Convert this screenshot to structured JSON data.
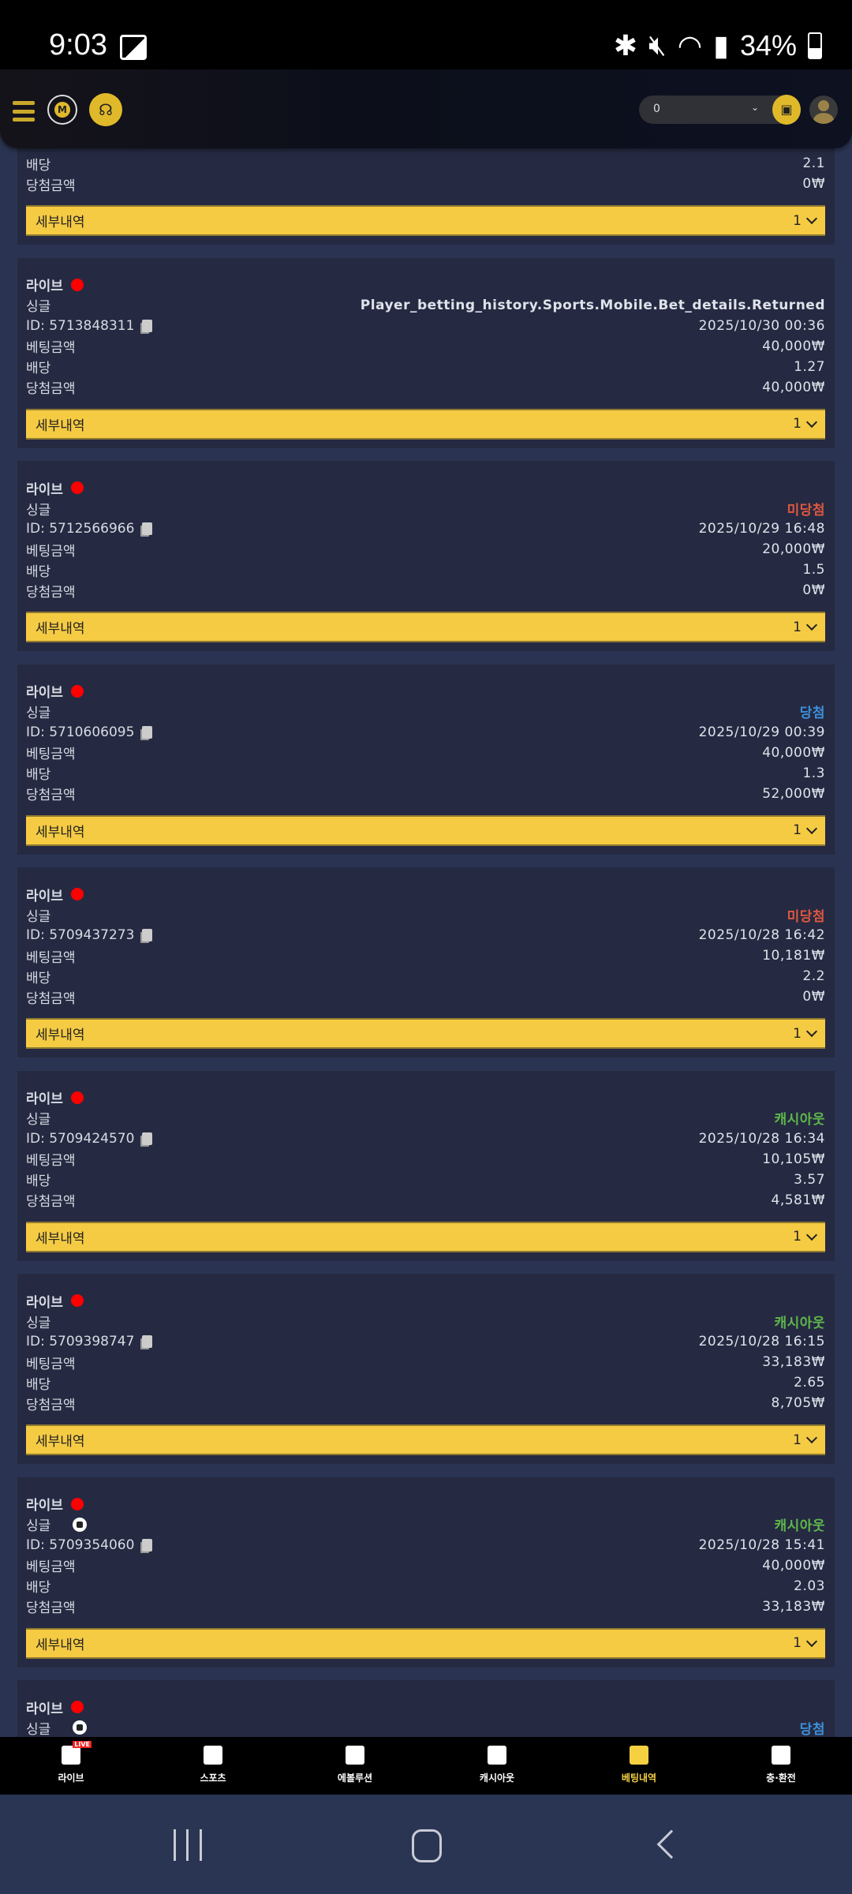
{
  "status_bar": {
    "time": "9:03",
    "battery": "34%"
  },
  "header": {
    "balance": "0",
    "icons": [
      "menu-icon",
      "logo-icon",
      "support-icon",
      "wallet-icon",
      "avatar-icon"
    ]
  },
  "labels": {
    "live": "라이브",
    "single": "싱글",
    "bet_amount": "베팅금액",
    "odds": "배당",
    "win_amount": "당첨금액",
    "details": "세부내역",
    "id_prefix": "ID: "
  },
  "status_colors": {
    "미당첨": "#e0573f",
    "당첨": "#3d8fd8",
    "캐시아웃": "#5fb84a",
    "returned": "#dfe2ea"
  },
  "bets": [
    {
      "type": "",
      "status": "",
      "id": "",
      "date": "",
      "bet_amount": "",
      "odds": "2.1",
      "win_amount": "0₩",
      "details_count": "1",
      "partial": true
    },
    {
      "type": "싱글",
      "status": "Player_betting_history.Sports.Mobile.Bet_details.Returned",
      "status_color": "#dfe2ea",
      "id": "ID: 5713848311",
      "date": "2025/10/30 00:36",
      "bet_amount": "40,000₩",
      "odds": "1.27",
      "win_amount": "40,000₩",
      "details_count": "1"
    },
    {
      "type": "싱글",
      "status": "미당첨",
      "status_color": "#e0573f",
      "id": "ID: 5712566966",
      "date": "2025/10/29 16:48",
      "bet_amount": "20,000₩",
      "odds": "1.5",
      "win_amount": "0₩",
      "details_count": "1"
    },
    {
      "type": "싱글",
      "status": "당첨",
      "status_color": "#3d8fd8",
      "id": "ID: 5710606095",
      "date": "2025/10/29 00:39",
      "bet_amount": "40,000₩",
      "odds": "1.3",
      "win_amount": "52,000₩",
      "details_count": "1"
    },
    {
      "type": "싱글",
      "status": "미당첨",
      "status_color": "#e0573f",
      "id": "ID: 5709437273",
      "date": "2025/10/28 16:42",
      "bet_amount": "10,181₩",
      "odds": "2.2",
      "win_amount": "0₩",
      "details_count": "1"
    },
    {
      "type": "싱글",
      "status": "캐시아웃",
      "status_color": "#5fb84a",
      "id": "ID: 5709424570",
      "date": "2025/10/28 16:34",
      "bet_amount": "10,105₩",
      "odds": "3.57",
      "win_amount": "4,581₩",
      "details_count": "1"
    },
    {
      "type": "싱글",
      "status": "캐시아웃",
      "status_color": "#5fb84a",
      "id": "ID: 5709398747",
      "date": "2025/10/28 16:15",
      "bet_amount": "33,183₩",
      "odds": "2.65",
      "win_amount": "8,705₩",
      "details_count": "1"
    },
    {
      "type": "싱글",
      "status": "캐시아웃",
      "status_color": "#5fb84a",
      "id": "ID: 5709354060",
      "date": "2025/10/28 15:41",
      "bet_amount": "40,000₩",
      "odds": "2.03",
      "win_amount": "33,183₩",
      "details_count": "1",
      "sport_icon": "soccer-ball-icon"
    },
    {
      "type": "싱글",
      "status": "당첨",
      "status_color": "#3d8fd8",
      "sport_icon": "soccer-ball-icon",
      "partial": true
    }
  ],
  "bottom_nav": [
    {
      "label": "라이브",
      "icon": "live-field-icon",
      "badge": "LIVE"
    },
    {
      "label": "스포츠",
      "icon": "soccer-ball-icon"
    },
    {
      "label": "에볼루션",
      "icon": "evolution-icon"
    },
    {
      "label": "캐시아웃",
      "icon": "cashout-icon"
    },
    {
      "label": "베팅내역",
      "icon": "bet-history-icon",
      "active": true
    },
    {
      "label": "충·환전",
      "icon": "deposit-withdraw-icon"
    }
  ]
}
